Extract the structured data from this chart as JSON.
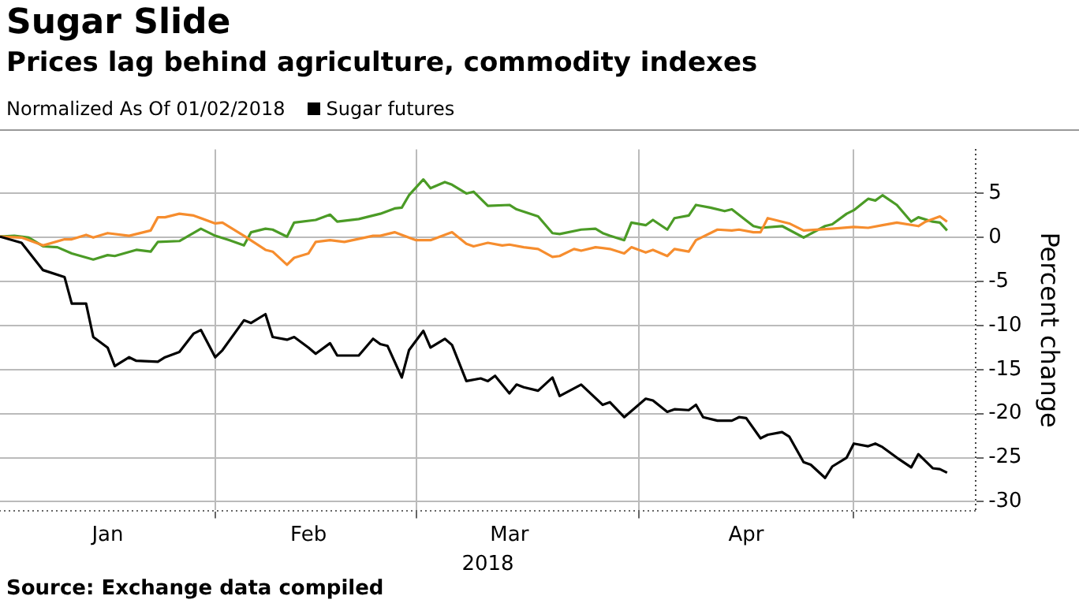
{
  "chart_data": {
    "type": "line",
    "title": "Sugar Slide",
    "subtitle": "Prices lag behind agriculture, commodity indexes",
    "legend_title": "Normalized As Of 01/02/2018",
    "xlabel": "2018",
    "ylabel": "Percent change",
    "annotations": [
      "Source: Exchange data compiled"
    ],
    "xlim": [
      "2018-01-02",
      "2018-05-18"
    ],
    "xticks": [
      {
        "value": "2018-01-17",
        "label": "Jan"
      },
      {
        "value": "2018-02-01",
        "label": null
      },
      {
        "value": "2018-02-14",
        "label": "Feb"
      },
      {
        "value": "2018-03-01",
        "label": null
      },
      {
        "value": "2018-03-14",
        "label": "Mar"
      },
      {
        "value": "2018-04-01",
        "label": null
      },
      {
        "value": "2018-04-16",
        "label": "Apr"
      },
      {
        "value": "2018-05-01",
        "label": null
      }
    ],
    "ylim": [
      -31,
      10
    ],
    "yticks": [
      -30,
      -25,
      -20,
      -15,
      -10,
      -5,
      0,
      5
    ],
    "grid": true,
    "legend": "top left",
    "marker": "none",
    "line_style": "solid",
    "series": [
      {
        "name": "Sugar futures",
        "color": "#000000",
        "x": [
          "2018-01-02",
          "2018-01-05",
          "2018-01-08",
          "2018-01-11",
          "2018-01-12",
          "2018-01-14",
          "2018-01-15",
          "2018-01-17",
          "2018-01-18",
          "2018-01-20",
          "2018-01-21",
          "2018-01-24",
          "2018-01-25",
          "2018-01-27",
          "2018-01-29",
          "2018-01-30",
          "2018-02-01",
          "2018-02-02",
          "2018-02-05",
          "2018-02-06",
          "2018-02-08",
          "2018-02-09",
          "2018-02-11",
          "2018-02-12",
          "2018-02-14",
          "2018-02-15",
          "2018-02-17",
          "2018-02-18",
          "2018-02-21",
          "2018-02-23",
          "2018-02-24",
          "2018-02-25",
          "2018-02-27",
          "2018-02-28",
          "2018-03-02",
          "2018-03-03",
          "2018-03-05",
          "2018-03-06",
          "2018-03-08",
          "2018-03-10",
          "2018-03-11",
          "2018-03-12",
          "2018-03-14",
          "2018-03-15",
          "2018-03-16",
          "2018-03-18",
          "2018-03-20",
          "2018-03-21",
          "2018-03-24",
          "2018-03-27",
          "2018-03-28",
          "2018-03-30",
          "2018-04-02",
          "2018-04-03",
          "2018-04-05",
          "2018-04-06",
          "2018-04-08",
          "2018-04-09",
          "2018-04-10",
          "2018-04-12",
          "2018-04-14",
          "2018-04-15",
          "2018-04-16",
          "2018-04-18",
          "2018-04-19",
          "2018-04-21",
          "2018-04-22",
          "2018-04-24",
          "2018-04-25",
          "2018-04-27",
          "2018-04-28",
          "2018-04-30",
          "2018-05-01",
          "2018-05-03",
          "2018-05-04",
          "2018-05-05",
          "2018-05-07",
          "2018-05-09",
          "2018-05-10",
          "2018-05-12",
          "2018-05-13",
          "2018-05-14"
        ],
        "values": [
          0.1,
          -0.6,
          -3.7,
          -4.5,
          -7.5,
          -7.5,
          -11.3,
          -12.5,
          -14.6,
          -13.6,
          -14.0,
          -14.1,
          -13.6,
          -13.0,
          -10.9,
          -10.5,
          -13.6,
          -12.8,
          -9.4,
          -9.7,
          -8.7,
          -11.3,
          -11.6,
          -11.3,
          -12.5,
          -13.2,
          -12.0,
          -13.4,
          -13.4,
          -11.5,
          -12.1,
          -12.3,
          -15.9,
          -12.8,
          -10.6,
          -12.5,
          -11.5,
          -12.2,
          -16.3,
          -16.0,
          -16.3,
          -15.7,
          -17.7,
          -16.7,
          -17.0,
          -17.4,
          -15.9,
          -18.0,
          -16.7,
          -19.0,
          -18.7,
          -20.4,
          -18.3,
          -18.5,
          -19.8,
          -19.5,
          -19.6,
          -19.0,
          -20.4,
          -20.8,
          -20.8,
          -20.4,
          -20.5,
          -22.8,
          -22.4,
          -22.1,
          -22.6,
          -25.5,
          -25.8,
          -27.3,
          -26.0,
          -25.0,
          -23.4,
          -23.7,
          -23.4,
          -23.8,
          -25.0,
          -26.1,
          -24.6,
          -26.2,
          -26.3,
          -26.7
        ]
      },
      {
        "color": "#f68d2e",
        "x": [
          "2018-01-02",
          "2018-01-05",
          "2018-01-08",
          "2018-01-11",
          "2018-01-12",
          "2018-01-14",
          "2018-01-15",
          "2018-01-17",
          "2018-01-20",
          "2018-01-23",
          "2018-01-24",
          "2018-01-25",
          "2018-01-27",
          "2018-01-29",
          "2018-02-01",
          "2018-02-02",
          "2018-02-05",
          "2018-02-08",
          "2018-02-09",
          "2018-02-11",
          "2018-02-12",
          "2018-02-14",
          "2018-02-15",
          "2018-02-17",
          "2018-02-19",
          "2018-02-23",
          "2018-02-24",
          "2018-02-26",
          "2018-03-01",
          "2018-03-03",
          "2018-03-06",
          "2018-03-08",
          "2018-03-09",
          "2018-03-11",
          "2018-03-13",
          "2018-03-14",
          "2018-03-16",
          "2018-03-18",
          "2018-03-20",
          "2018-03-21",
          "2018-03-23",
          "2018-03-24",
          "2018-03-26",
          "2018-03-28",
          "2018-03-30",
          "2018-03-31",
          "2018-04-02",
          "2018-04-03",
          "2018-04-05",
          "2018-04-06",
          "2018-04-08",
          "2018-04-09",
          "2018-04-11",
          "2018-04-12",
          "2018-04-14",
          "2018-04-15",
          "2018-04-17",
          "2018-04-18",
          "2018-04-19",
          "2018-04-21",
          "2018-04-22",
          "2018-04-24",
          "2018-04-28",
          "2018-05-01",
          "2018-05-03",
          "2018-05-05",
          "2018-05-07",
          "2018-05-10",
          "2018-05-11",
          "2018-05-13",
          "2018-05-14"
        ],
        "values": [
          0.1,
          0.0,
          -0.9,
          -0.2,
          -0.2,
          0.3,
          0.0,
          0.5,
          0.2,
          0.8,
          2.3,
          2.3,
          2.7,
          2.5,
          1.6,
          1.7,
          0.2,
          -1.4,
          -1.6,
          -3.1,
          -2.3,
          -1.8,
          -0.5,
          -0.3,
          -0.5,
          0.2,
          0.2,
          0.6,
          -0.3,
          -0.3,
          0.6,
          -0.7,
          -1.0,
          -0.6,
          -0.9,
          -0.8,
          -1.1,
          -1.3,
          -2.2,
          -2.1,
          -1.3,
          -1.5,
          -1.1,
          -1.3,
          -1.8,
          -1.1,
          -1.7,
          -1.4,
          -2.1,
          -1.3,
          -1.6,
          -0.3,
          0.5,
          0.9,
          0.8,
          0.9,
          0.6,
          0.6,
          2.2,
          1.8,
          1.6,
          0.8,
          1.0,
          1.2,
          1.1,
          1.4,
          1.7,
          1.3,
          1.8,
          2.4,
          1.8
        ]
      },
      {
        "color": "#4b9b26",
        "x": [
          "2018-01-02",
          "2018-01-04",
          "2018-01-06",
          "2018-01-08",
          "2018-01-10",
          "2018-01-12",
          "2018-01-15",
          "2018-01-17",
          "2018-01-18",
          "2018-01-21",
          "2018-01-23",
          "2018-01-24",
          "2018-01-27",
          "2018-01-30",
          "2018-02-01",
          "2018-02-03",
          "2018-02-05",
          "2018-02-06",
          "2018-02-08",
          "2018-02-09",
          "2018-02-11",
          "2018-02-12",
          "2018-02-15",
          "2018-02-17",
          "2018-02-18",
          "2018-02-21",
          "2018-02-24",
          "2018-02-26",
          "2018-02-27",
          "2018-02-28",
          "2018-03-02",
          "2018-03-03",
          "2018-03-05",
          "2018-03-06",
          "2018-03-08",
          "2018-03-09",
          "2018-03-11",
          "2018-03-14",
          "2018-03-15",
          "2018-03-18",
          "2018-03-20",
          "2018-03-21",
          "2018-03-24",
          "2018-03-26",
          "2018-03-27",
          "2018-03-28",
          "2018-03-30",
          "2018-03-31",
          "2018-04-02",
          "2018-04-03",
          "2018-04-05",
          "2018-04-06",
          "2018-04-08",
          "2018-04-09",
          "2018-04-11",
          "2018-04-13",
          "2018-04-14",
          "2018-04-17",
          "2018-04-18",
          "2018-04-21",
          "2018-04-24",
          "2018-04-27",
          "2018-04-28",
          "2018-04-30",
          "2018-05-01",
          "2018-05-03",
          "2018-05-04",
          "2018-05-05",
          "2018-05-07",
          "2018-05-09",
          "2018-05-10",
          "2018-05-12",
          "2018-05-13",
          "2018-05-14"
        ],
        "values": [
          0.1,
          0.2,
          0.0,
          -1.0,
          -1.1,
          -1.8,
          -2.5,
          -2.0,
          -2.1,
          -1.4,
          -1.6,
          -0.5,
          -0.4,
          1.0,
          0.2,
          -0.3,
          -0.9,
          0.6,
          1.0,
          0.9,
          0.1,
          1.7,
          2.0,
          2.6,
          1.8,
          2.1,
          2.7,
          3.3,
          3.4,
          4.8,
          6.6,
          5.6,
          6.3,
          6.0,
          5.0,
          5.2,
          3.6,
          3.7,
          3.2,
          2.4,
          0.5,
          0.4,
          0.9,
          1.0,
          0.5,
          0.2,
          -0.3,
          1.7,
          1.4,
          2.0,
          0.9,
          2.2,
          2.5,
          3.7,
          3.4,
          3.0,
          3.2,
          1.3,
          1.1,
          1.3,
          0.0,
          1.3,
          1.5,
          2.7,
          3.1,
          4.4,
          4.2,
          4.8,
          3.7,
          1.8,
          2.3,
          1.8,
          1.7,
          0.8
        ]
      }
    ]
  }
}
